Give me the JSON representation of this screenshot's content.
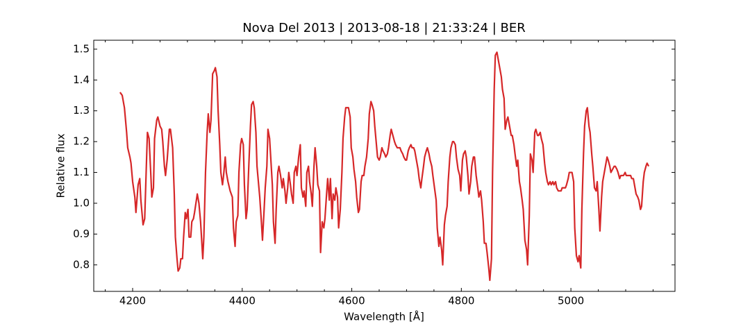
{
  "chart_data": {
    "type": "line",
    "title": "Nova Del 2013 | 2013-08-18 | 21:33:24 | BER",
    "xlabel": "Wavelength [Å]",
    "ylabel": "Relative flux",
    "color": "#d62728",
    "xlim": [
      4129,
      5190
    ],
    "ylim": [
      0.714,
      1.529
    ],
    "xticks": [
      4200,
      4400,
      4600,
      4800,
      5000
    ],
    "xminorticks": [
      4150,
      4250,
      4300,
      4350,
      4450,
      4500,
      4550,
      4650,
      4700,
      4750,
      4850,
      4900,
      4950,
      5050,
      5100,
      5150
    ],
    "yticks": [
      0.8,
      0.9,
      {
        "value": 1,
        "label": "1.0"
      },
      1.1,
      1.2,
      1.3,
      1.4,
      1.5
    ],
    "x": [
      4177,
      4181,
      4185,
      4189,
      4191,
      4195,
      4197,
      4200,
      4204,
      4206,
      4210,
      4213,
      4215,
      4219,
      4222,
      4225,
      4227,
      4230,
      4233,
      4235,
      4238,
      4240,
      4244,
      4246,
      4250,
      4253,
      4255,
      4258,
      4260,
      4263,
      4267,
      4269,
      4273,
      4276,
      4278,
      4281,
      4283,
      4286,
      4288,
      4291,
      4293,
      4296,
      4298,
      4301,
      4303,
      4306,
      4308,
      4311,
      4313,
      4318,
      4321,
      4324,
      4328,
      4330,
      4333,
      4336,
      4338,
      4341,
      4343,
      4346,
      4349,
      4351,
      4354,
      4356,
      4359,
      4361,
      4364,
      4366,
      4369,
      4371,
      4374,
      4378,
      4382,
      4384,
      4387,
      4389,
      4392,
      4394,
      4397,
      4399,
      4402,
      4404,
      4407,
      4409,
      4412,
      4415,
      4417,
      4420,
      4422,
      4425,
      4427,
      4430,
      4432,
      4435,
      4437,
      4440,
      4442,
      4445,
      4447,
      4450,
      4452,
      4455,
      4457,
      4460,
      4462,
      4465,
      4467,
      4470,
      4473,
      4475,
      4478,
      4480,
      4483,
      4485,
      4488,
      4490,
      4493,
      4495,
      4498,
      4500,
      4503,
      4506,
      4508,
      4511,
      4513,
      4516,
      4518,
      4521,
      4523,
      4526,
      4528,
      4531,
      4533,
      4536,
      4538,
      4541,
      4543,
      4546,
      4549,
      4551,
      4554,
      4556,
      4559,
      4561,
      4564,
      4566,
      4569,
      4571,
      4574,
      4576,
      4579,
      4582,
      4584,
      4587,
      4589,
      4592,
      4594,
      4597,
      4599,
      4602,
      4604,
      4607,
      4609,
      4612,
      4614,
      4617,
      4619,
      4622,
      4624,
      4627,
      4630,
      4632,
      4635,
      4637,
      4640,
      4642,
      4645,
      4647,
      4650,
      4652,
      4655,
      4657,
      4660,
      4662,
      4665,
      4667,
      4670,
      4672,
      4675,
      4678,
      4680,
      4683,
      4685,
      4688,
      4690,
      4693,
      4695,
      4698,
      4700,
      4703,
      4705,
      4708,
      4710,
      4713,
      4715,
      4718,
      4721,
      4723,
      4726,
      4728,
      4731,
      4733,
      4736,
      4738,
      4741,
      4743,
      4746,
      4748,
      4751,
      4754,
      4756,
      4759,
      4761,
      4764,
      4766,
      4769,
      4771,
      4774,
      4776,
      4779,
      4781,
      4784,
      4786,
      4789,
      4791,
      4794,
      4797,
      4799,
      4802,
      4804,
      4807,
      4809,
      4812,
      4814,
      4817,
      4819,
      4822,
      4824,
      4827,
      4830,
      4832,
      4835,
      4837,
      4840,
      4842,
      4845,
      4847,
      4850,
      4852,
      4855,
      4857,
      4860,
      4862,
      4865,
      4868,
      4870,
      4873,
      4875,
      4878,
      4880,
      4883,
      4885,
      4888,
      4891,
      4893,
      4896,
      4898,
      4901,
      4903,
      4906,
      4908,
      4911,
      4913,
      4916,
      4919,
      4921,
      4924,
      4926,
      4929,
      4931,
      4934,
      4936,
      4939,
      4941,
      4944,
      4946,
      4949,
      4952,
      4954,
      4957,
      4959,
      4962,
      4964,
      4967,
      4969,
      4972,
      4974,
      4977,
      4979,
      4982,
      4984,
      4987,
      4990,
      4992,
      4995,
      4997,
      5000,
      5002,
      5005,
      5007,
      5010,
      5013,
      5015,
      5018,
      5020,
      5023,
      5025,
      5028,
      5030,
      5033,
      5035,
      5038,
      5040,
      5043,
      5046,
      5048,
      5051,
      5053,
      5056,
      5058,
      5061,
      5063,
      5066,
      5068,
      5071,
      5073,
      5076,
      5079,
      5081,
      5084,
      5086,
      5089,
      5091,
      5094,
      5096,
      5099,
      5101,
      5104,
      5106,
      5109,
      5111,
      5114,
      5117,
      5119,
      5122,
      5124,
      5127,
      5129,
      5132,
      5134,
      5137,
      5139,
      5142
    ],
    "values": [
      1.36,
      1.35,
      1.31,
      1.23,
      1.18,
      1.15,
      1.13,
      1.07,
      1.02,
      0.97,
      1.06,
      1.08,
      1.01,
      0.93,
      0.95,
      1.12,
      1.23,
      1.21,
      1.1,
      1.02,
      1.05,
      1.21,
      1.27,
      1.28,
      1.25,
      1.24,
      1.2,
      1.12,
      1.09,
      1.14,
      1.24,
      1.24,
      1.18,
      1.03,
      0.89,
      0.82,
      0.78,
      0.79,
      0.82,
      0.82,
      0.89,
      0.97,
      0.95,
      0.98,
      0.89,
      0.89,
      0.94,
      0.95,
      0.97,
      1.03,
      1.0,
      0.94,
      0.82,
      0.89,
      1.1,
      1.23,
      1.29,
      1.23,
      1.27,
      1.42,
      1.43,
      1.44,
      1.41,
      1.3,
      1.19,
      1.1,
      1.06,
      1.09,
      1.15,
      1.1,
      1.07,
      1.04,
      1.02,
      0.92,
      0.86,
      0.94,
      0.96,
      1.1,
      1.19,
      1.21,
      1.19,
      1.06,
      0.95,
      0.98,
      1.12,
      1.25,
      1.32,
      1.33,
      1.31,
      1.23,
      1.12,
      1.06,
      1.02,
      0.94,
      0.88,
      0.98,
      1.05,
      1.12,
      1.24,
      1.21,
      1.15,
      1.06,
      0.94,
      0.87,
      0.98,
      1.1,
      1.12,
      1.09,
      1.05,
      1.08,
      1.04,
      1.0,
      1.05,
      1.1,
      1.06,
      1.03,
      1.0,
      1.1,
      1.12,
      1.09,
      1.15,
      1.19,
      1.05,
      1.02,
      1.04,
      0.99,
      1.1,
      1.12,
      1.07,
      1.03,
      0.99,
      1.12,
      1.18,
      1.12,
      1.06,
      1.04,
      0.84,
      0.94,
      0.92,
      0.95,
      1.03,
      1.08,
      1.01,
      1.08,
      0.95,
      1.03,
      1.01,
      1.05,
      1.02,
      0.92,
      0.98,
      1.1,
      1.21,
      1.28,
      1.31,
      1.31,
      1.31,
      1.28,
      1.18,
      1.15,
      1.11,
      1.07,
      1.02,
      0.97,
      0.98,
      1.07,
      1.09,
      1.09,
      1.12,
      1.15,
      1.21,
      1.29,
      1.33,
      1.32,
      1.3,
      1.25,
      1.19,
      1.15,
      1.14,
      1.15,
      1.18,
      1.17,
      1.16,
      1.15,
      1.16,
      1.18,
      1.22,
      1.24,
      1.22,
      1.2,
      1.19,
      1.18,
      1.18,
      1.18,
      1.17,
      1.16,
      1.15,
      1.14,
      1.14,
      1.17,
      1.18,
      1.19,
      1.18,
      1.18,
      1.17,
      1.14,
      1.11,
      1.08,
      1.05,
      1.08,
      1.12,
      1.15,
      1.17,
      1.18,
      1.16,
      1.14,
      1.12,
      1.09,
      1.05,
      1.01,
      0.92,
      0.86,
      0.89,
      0.85,
      0.8,
      0.93,
      0.96,
      0.99,
      1.07,
      1.15,
      1.18,
      1.2,
      1.2,
      1.19,
      1.15,
      1.11,
      1.09,
      1.04,
      1.14,
      1.16,
      1.17,
      1.15,
      1.09,
      1.03,
      1.07,
      1.12,
      1.15,
      1.15,
      1.09,
      1.05,
      1.02,
      1.04,
      1.01,
      0.94,
      0.87,
      0.87,
      0.84,
      0.79,
      0.75,
      0.82,
      1.1,
      1.37,
      1.48,
      1.49,
      1.46,
      1.44,
      1.41,
      1.37,
      1.34,
      1.24,
      1.27,
      1.28,
      1.25,
      1.22,
      1.22,
      1.19,
      1.16,
      1.12,
      1.14,
      1.07,
      1.05,
      1.01,
      0.98,
      0.88,
      0.85,
      0.8,
      0.96,
      1.16,
      1.14,
      1.1,
      1.23,
      1.24,
      1.22,
      1.22,
      1.23,
      1.21,
      1.19,
      1.13,
      1.1,
      1.07,
      1.06,
      1.07,
      1.06,
      1.07,
      1.06,
      1.07,
      1.05,
      1.04,
      1.04,
      1.04,
      1.05,
      1.05,
      1.05,
      1.06,
      1.08,
      1.1,
      1.1,
      1.1,
      1.07,
      0.92,
      0.83,
      0.81,
      0.83,
      0.79,
      0.98,
      1.16,
      1.25,
      1.3,
      1.31,
      1.25,
      1.23,
      1.16,
      1.12,
      1.05,
      1.04,
      1.07,
      0.98,
      0.91,
      1.02,
      1.07,
      1.1,
      1.12,
      1.15,
      1.14,
      1.12,
      1.1,
      1.11,
      1.12,
      1.12,
      1.11,
      1.1,
      1.08,
      1.09,
      1.09,
      1.09,
      1.1,
      1.09,
      1.09,
      1.09,
      1.09,
      1.08,
      1.08,
      1.05,
      1.03,
      1.02,
      1.01,
      0.98,
      0.99,
      1.07,
      1.1,
      1.12,
      1.13,
      1.12
    ]
  }
}
